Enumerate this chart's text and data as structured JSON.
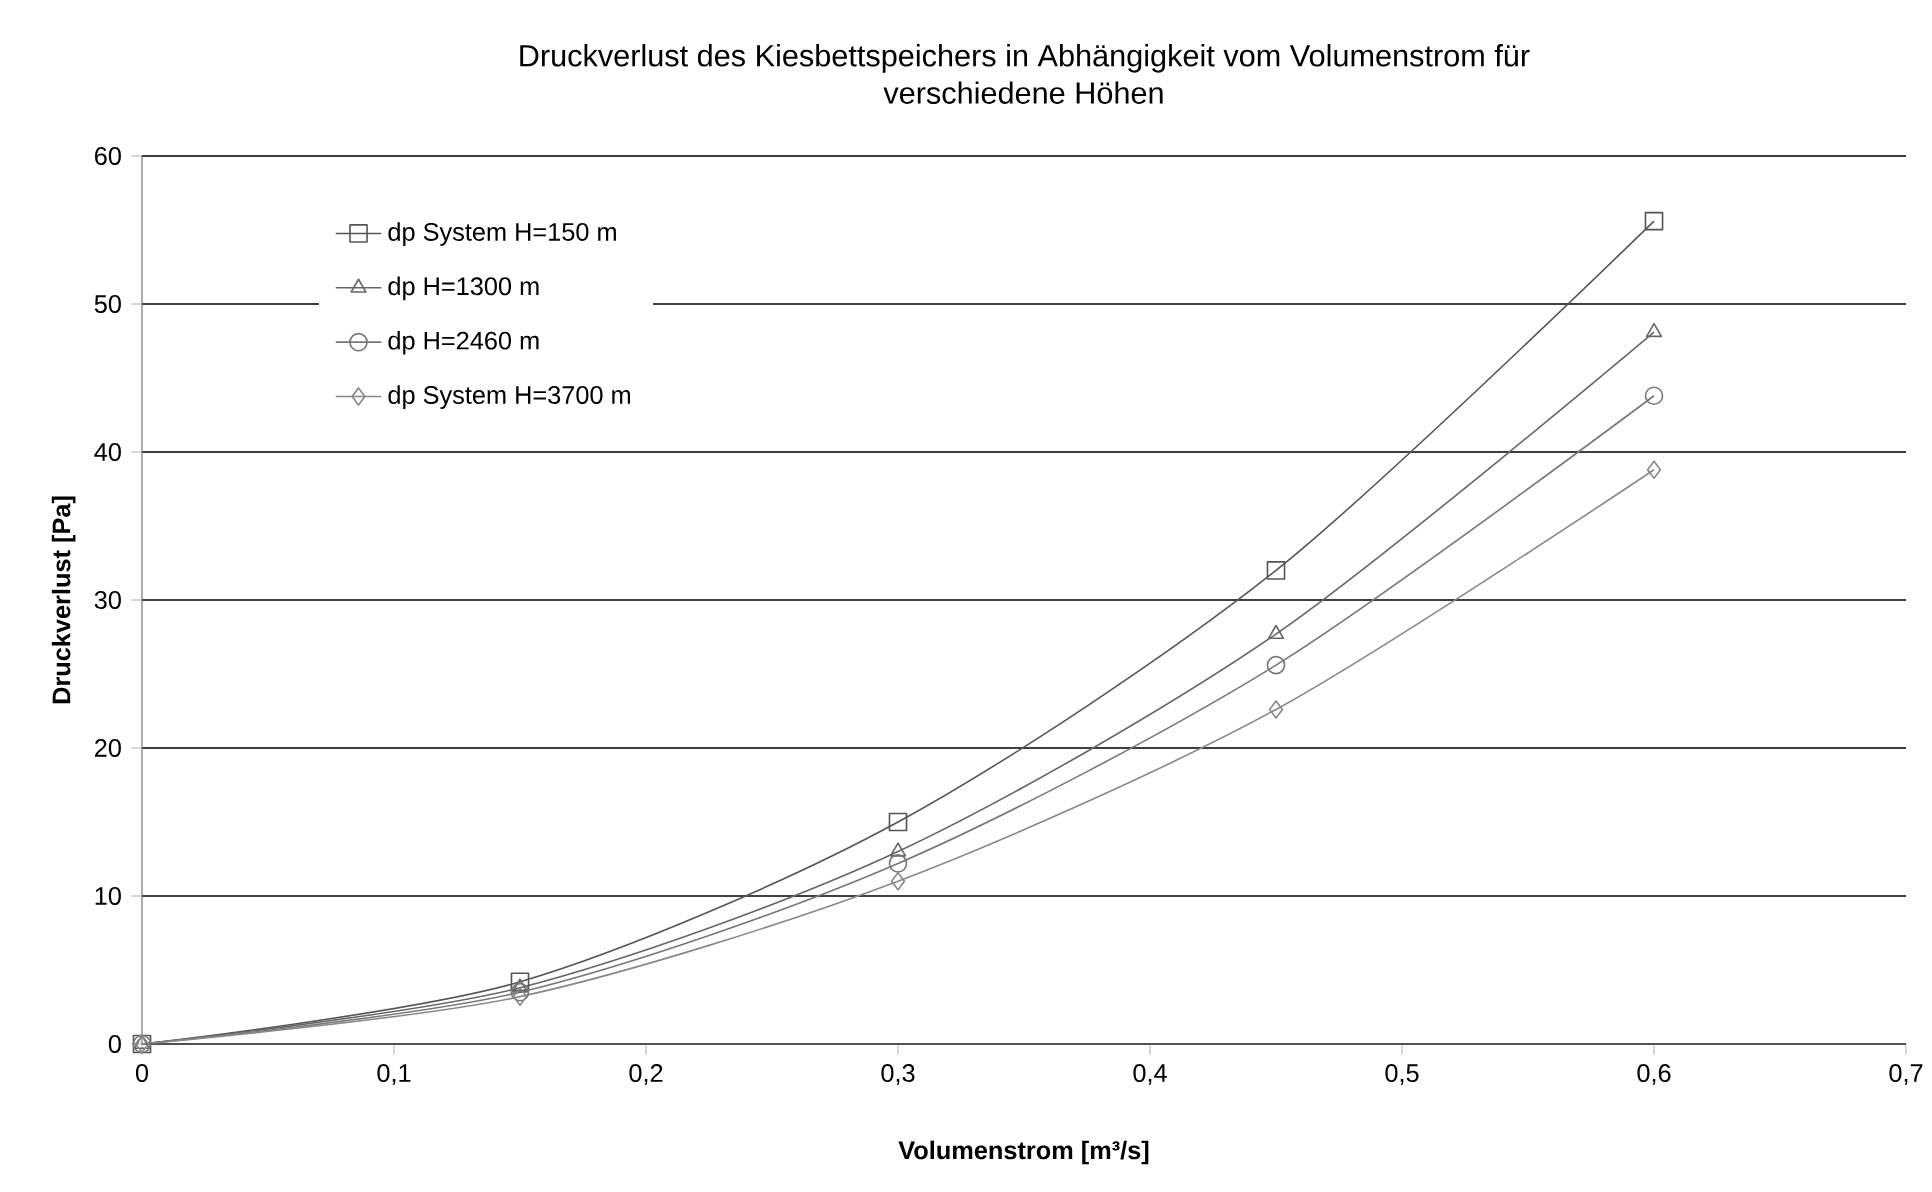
{
  "chart_data": {
    "type": "line",
    "title": "Druckverlust des Kiesbettspeichers in Abhängigkeit vom Volumenstrom für verschiedene Höhen",
    "xlabel": "Volumenstrom [m³/s]",
    "ylabel": "Druckverlust [Pa]",
    "x": [
      0,
      0.15,
      0.3,
      0.45,
      0.6
    ],
    "series": [
      {
        "name": "dp System H=150 m",
        "color": "#555555",
        "marker": "square",
        "values": [
          0,
          4.2,
          15,
          32,
          55.6
        ]
      },
      {
        "name": "dp H=1300 m",
        "color": "#666666",
        "marker": "triangle",
        "values": [
          0,
          3.8,
          13,
          27.7,
          48.1
        ]
      },
      {
        "name": "dp H=2460 m",
        "color": "#777777",
        "marker": "circle",
        "values": [
          0,
          3.5,
          12.2,
          25.6,
          43.8
        ]
      },
      {
        "name": "dp System H=3700 m",
        "color": "#888888",
        "marker": "diamond",
        "values": [
          0,
          3.2,
          11,
          22.6,
          38.8
        ]
      }
    ],
    "xlim": [
      0,
      0.7
    ],
    "ylim": [
      0,
      60
    ],
    "xticks": [
      0,
      {
        "value": 0.1,
        "label": "0,1"
      },
      {
        "value": 0.2,
        "label": "0,2"
      },
      {
        "value": 0.3,
        "label": "0,3"
      },
      {
        "value": 0.4,
        "label": "0,4"
      },
      {
        "value": 0.5,
        "label": "0,5"
      },
      {
        "value": 0.6,
        "label": "0,6"
      },
      {
        "value": 0.7,
        "label": "0,7"
      }
    ],
    "yticks": [
      0,
      10,
      20,
      30,
      40,
      50,
      60
    ],
    "grid": "y",
    "legend": "top left",
    "line_style": "solid"
  }
}
